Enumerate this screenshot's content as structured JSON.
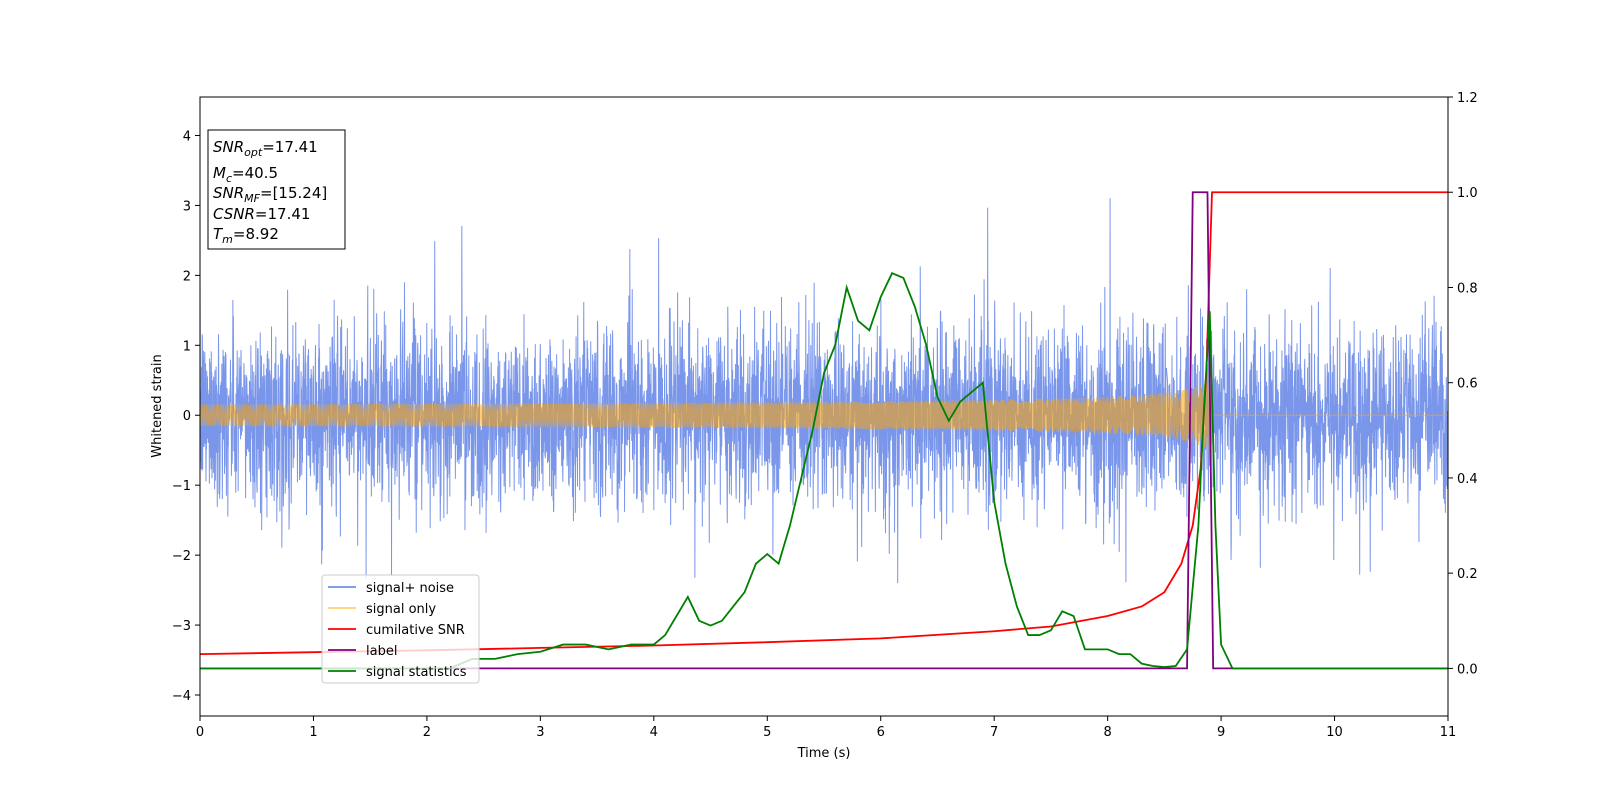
{
  "chart_data": {
    "type": "line",
    "xlabel": "Time (s)",
    "ylabel": "Whitened strain",
    "xlim": [
      0,
      11
    ],
    "ylim_left": [
      -4.3,
      4.55
    ],
    "ylim_right": [
      -0.1,
      1.2
    ],
    "x_ticks": [
      0,
      1,
      2,
      3,
      4,
      5,
      6,
      7,
      8,
      9,
      10,
      11
    ],
    "y_ticks_left": [
      -4,
      -3,
      -2,
      -1,
      0,
      1,
      2,
      3,
      4
    ],
    "y_ticks_right": [
      0.0,
      0.2,
      0.4,
      0.6,
      0.8,
      1.0,
      1.2
    ],
    "grid": false,
    "legend_position": "lower-left",
    "annotation_box": {
      "lines": [
        {
          "base": "SNR",
          "sub": "opt",
          "rest": "=17.41"
        },
        {
          "base": "M",
          "sub": "c",
          "rest": "=40.5"
        },
        {
          "base": "SNR",
          "sub": "MF",
          "rest": "=[15.24]"
        },
        {
          "base": "CSNR",
          "sub": "",
          "rest": "=17.41"
        },
        {
          "base": "T",
          "sub": "m",
          "rest": "=8.92"
        }
      ]
    },
    "series": [
      {
        "name": "signal+ noise",
        "axis": "left",
        "color": "#4169e1",
        "noise_sigma": 0.7,
        "range": [
          -2.4,
          2.9
        ],
        "note_samples": "dense noisy signal sampled at ~ 0.0022 s"
      },
      {
        "name": "signal only",
        "axis": "left",
        "color": "#ffa500",
        "chirp_end": 8.92,
        "amplitude_peak": 0.75
      },
      {
        "name": "cumilative SNR",
        "axis": "right",
        "color": "#ff0000",
        "points": [
          [
            0,
            0.03
          ],
          [
            1,
            0.034
          ],
          [
            2,
            0.038
          ],
          [
            3,
            0.043
          ],
          [
            4,
            0.048
          ],
          [
            5,
            0.055
          ],
          [
            6,
            0.063
          ],
          [
            7,
            0.078
          ],
          [
            7.5,
            0.088
          ],
          [
            8,
            0.11
          ],
          [
            8.3,
            0.13
          ],
          [
            8.5,
            0.16
          ],
          [
            8.65,
            0.22
          ],
          [
            8.75,
            0.3
          ],
          [
            8.82,
            0.42
          ],
          [
            8.87,
            0.62
          ],
          [
            8.9,
            0.85
          ],
          [
            8.92,
            1.0
          ],
          [
            11,
            1.0
          ]
        ]
      },
      {
        "name": "label",
        "axis": "right",
        "color": "#800080",
        "points": [
          [
            0,
            0.0
          ],
          [
            8.7,
            0.0
          ],
          [
            8.75,
            1.0
          ],
          [
            8.88,
            1.0
          ],
          [
            8.93,
            0.0
          ],
          [
            11,
            0.0
          ]
        ]
      },
      {
        "name": "signal statistics",
        "axis": "right",
        "color": "#008000",
        "points": [
          [
            0,
            0.0
          ],
          [
            2.2,
            0.0
          ],
          [
            2.4,
            0.02
          ],
          [
            2.6,
            0.02
          ],
          [
            2.8,
            0.03
          ],
          [
            3.0,
            0.035
          ],
          [
            3.2,
            0.05
          ],
          [
            3.4,
            0.05
          ],
          [
            3.6,
            0.04
          ],
          [
            3.8,
            0.05
          ],
          [
            4.0,
            0.05
          ],
          [
            4.1,
            0.07
          ],
          [
            4.2,
            0.11
          ],
          [
            4.3,
            0.15
          ],
          [
            4.4,
            0.1
          ],
          [
            4.5,
            0.09
          ],
          [
            4.6,
            0.1
          ],
          [
            4.7,
            0.13
          ],
          [
            4.8,
            0.16
          ],
          [
            4.9,
            0.22
          ],
          [
            5.0,
            0.24
          ],
          [
            5.1,
            0.22
          ],
          [
            5.2,
            0.3
          ],
          [
            5.3,
            0.4
          ],
          [
            5.4,
            0.5
          ],
          [
            5.5,
            0.62
          ],
          [
            5.6,
            0.68
          ],
          [
            5.7,
            0.8
          ],
          [
            5.8,
            0.73
          ],
          [
            5.9,
            0.71
          ],
          [
            6.0,
            0.78
          ],
          [
            6.1,
            0.83
          ],
          [
            6.2,
            0.82
          ],
          [
            6.3,
            0.76
          ],
          [
            6.4,
            0.68
          ],
          [
            6.5,
            0.57
          ],
          [
            6.6,
            0.52
          ],
          [
            6.7,
            0.56
          ],
          [
            6.8,
            0.58
          ],
          [
            6.9,
            0.6
          ],
          [
            7.0,
            0.35
          ],
          [
            7.1,
            0.22
          ],
          [
            7.2,
            0.13
          ],
          [
            7.3,
            0.07
          ],
          [
            7.4,
            0.07
          ],
          [
            7.5,
            0.08
          ],
          [
            7.6,
            0.12
          ],
          [
            7.7,
            0.11
          ],
          [
            7.8,
            0.04
          ],
          [
            7.9,
            0.04
          ],
          [
            8.0,
            0.04
          ],
          [
            8.1,
            0.03
          ],
          [
            8.2,
            0.03
          ],
          [
            8.3,
            0.01
          ],
          [
            8.4,
            0.005
          ],
          [
            8.5,
            0.003
          ],
          [
            8.6,
            0.005
          ],
          [
            8.7,
            0.04
          ],
          [
            8.8,
            0.3
          ],
          [
            8.85,
            0.55
          ],
          [
            8.9,
            0.75
          ],
          [
            8.95,
            0.3
          ],
          [
            9.0,
            0.05
          ],
          [
            9.1,
            0.0
          ],
          [
            11,
            0.0
          ]
        ]
      }
    ]
  }
}
